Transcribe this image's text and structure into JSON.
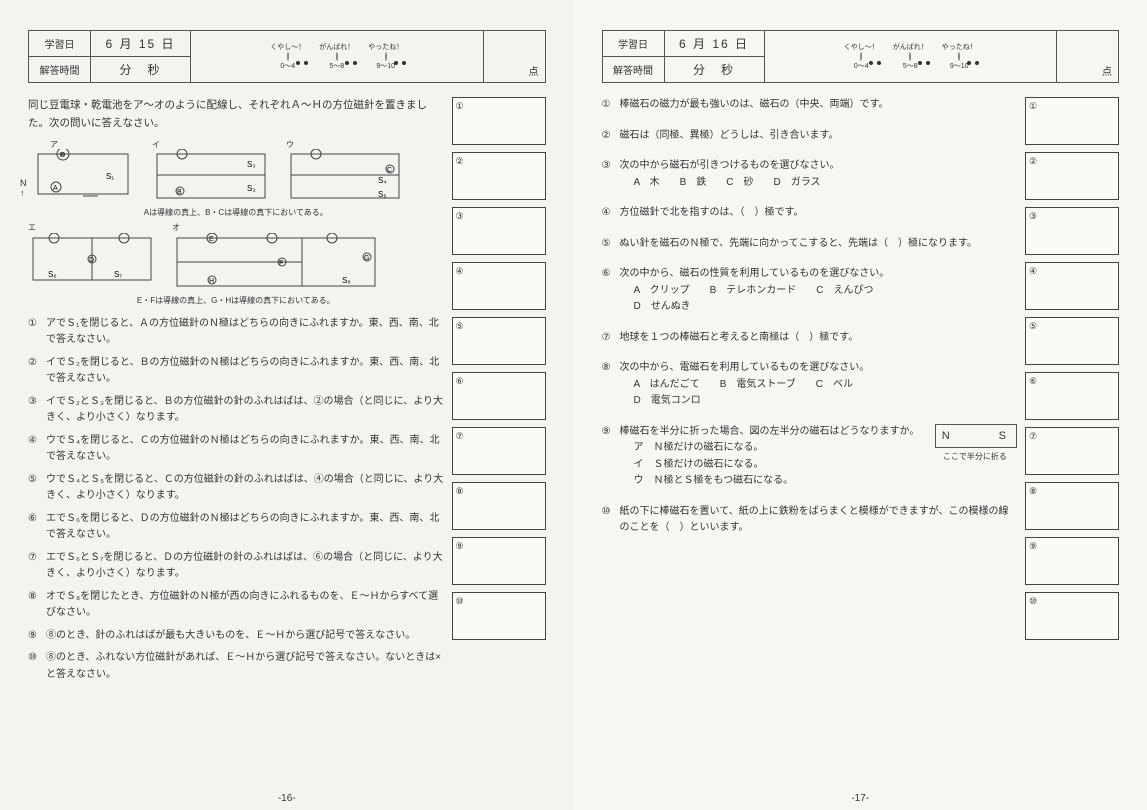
{
  "left": {
    "header": {
      "study_label": "学習日",
      "date": "6 月 15 日",
      "time_label": "解答時間",
      "time_units": "分　秒",
      "stamps": [
        {
          "label": "くやし～！",
          "range": "0～4"
        },
        {
          "label": "がんばれ！",
          "range": "5～8"
        },
        {
          "label": "やったね！",
          "range": "9～10"
        }
      ],
      "score_suffix": "点"
    },
    "intro": "同じ豆電球・乾電池をア～オのように配線し、それぞれＡ～Ｈの方位磁針を置きました。次の問いに答えなさい。",
    "diagram_note1": "Aは導線の真上、B・Cは導線の真下においてある。",
    "diagram_note2": "E・Fは導線の真上、G・Hは導線の真下においてある。",
    "questions": [
      {
        "n": "①",
        "t": "アでＳ₁を閉じると、Ａの方位磁針のＮ極はどちらの向きにふれますか。東、西、南、北で答えなさい。"
      },
      {
        "n": "②",
        "t": "イでＳ₂を閉じると、Ｂの方位磁針のＮ極はどちらの向きにふれますか。東、西、南、北で答えなさい。"
      },
      {
        "n": "③",
        "t": "イでＳ₂とＳ₃を閉じると、Ｂの方位磁針の針のふれはばは、②の場合（と同じに、より大きく、より小さく）なります。"
      },
      {
        "n": "④",
        "t": "ウでＳ₄を閉じると、Ｃの方位磁針のＮ極はどちらの向きにふれますか。東、西、南、北で答えなさい。"
      },
      {
        "n": "⑤",
        "t": "ウでＳ₄とＳ₅を閉じると、Ｃの方位磁針の針のふれはばは、④の場合（と同じに、より大きく、より小さく）なります。"
      },
      {
        "n": "⑥",
        "t": "エでＳ₆を閉じると、Ｄの方位磁針のＮ極はどちらの向きにふれますか。東、西、南、北で答えなさい。"
      },
      {
        "n": "⑦",
        "t": "エでＳ₆とＳ₇を閉じると、Ｄの方位磁針の針のふれはばは、⑥の場合（と同じに、より大きく、より小さく）なります。"
      },
      {
        "n": "⑧",
        "t": "オでＳ₈を閉じたとき、方位磁針のＮ極が西の向きにふれるものを、Ｅ～Ｈからすべて選びなさい。"
      },
      {
        "n": "⑨",
        "t": "⑧のとき、針のふれはばが最も大きいものを、Ｅ～Ｈから選び記号で答えなさい。"
      },
      {
        "n": "⑩",
        "t": "⑧のとき、ふれない方位磁針があれば、Ｅ～Ｈから選び記号で答えなさい。ないときは×と答えなさい。"
      }
    ],
    "answers": [
      "①",
      "②",
      "③",
      "④",
      "⑤",
      "⑥",
      "⑦",
      "⑧",
      "⑨",
      "⑩"
    ],
    "page_num": "-16-",
    "compass_label": "N"
  },
  "right": {
    "header": {
      "study_label": "学習日",
      "date": "6 月 16 日",
      "time_label": "解答時間",
      "time_units": "分　秒",
      "stamps": [
        {
          "label": "くやし～！",
          "range": "0～4"
        },
        {
          "label": "がんばれ！",
          "range": "5～8"
        },
        {
          "label": "やったね！",
          "range": "9～10"
        }
      ],
      "score_suffix": "点"
    },
    "questions": [
      {
        "n": "①",
        "t": "棒磁石の磁力が最も強いのは、磁石の（中央、両端）です。"
      },
      {
        "n": "②",
        "t": "磁石は（同極、異極）どうしは、引き合います。"
      },
      {
        "n": "③",
        "t": "次の中から磁石が引きつけるものを選びなさい。",
        "opts": "A　木　　B　鉄　　C　砂　　D　ガラス"
      },
      {
        "n": "④",
        "t": "方位磁針で北を指すのは、（　）極です。"
      },
      {
        "n": "⑤",
        "t": "ぬい針を磁石のＮ極で、先端に向かってこすると、先端は（　）極になります。"
      },
      {
        "n": "⑥",
        "t": "次の中から、磁石の性質を利用しているものを選びなさい。",
        "opts": "A　クリップ　　B　テレホンカード　　C　えんぴつ\nD　せんぬき"
      },
      {
        "n": "⑦",
        "t": "地球を１つの棒磁石と考えると南極は（　）極です。"
      },
      {
        "n": "⑧",
        "t": "次の中から、電磁石を利用しているものを選びなさい。",
        "opts": "A　はんだごて　　B　電気ストーブ　　C　ベル\nD　電気コンロ"
      },
      {
        "n": "⑨",
        "t": "棒磁石を半分に折った場合、図の左半分の磁石はどうなりますか。",
        "sub": [
          "ア　Ｎ極だけの磁石になる。",
          "イ　Ｓ極だけの磁石になる。",
          "ウ　Ｎ極とＳ極をもつ磁石になる。"
        ],
        "diagram": "N　　　S",
        "diagram_note": "ここで半分に折る"
      },
      {
        "n": "⑩",
        "t": "紙の下に棒磁石を置いて、紙の上に鉄粉をばらまくと模様ができますが、この模様の線のことを（　）といいます。"
      }
    ],
    "answers": [
      "①",
      "②",
      "③",
      "④",
      "⑤",
      "⑥",
      "⑦",
      "⑧",
      "⑨",
      "⑩"
    ],
    "page_num": "-17-"
  }
}
